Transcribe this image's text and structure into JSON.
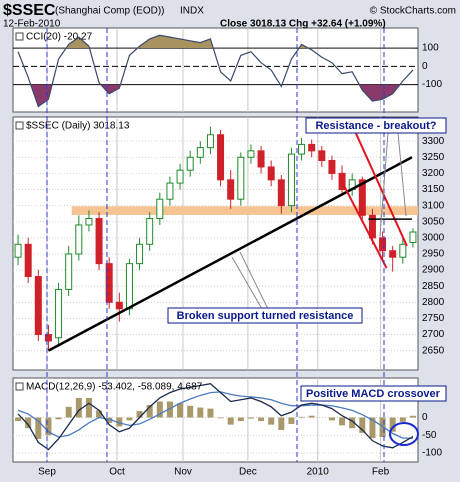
{
  "header": {
    "symbol": "$SSEC",
    "name": "(Shanghai Comp (EOD))",
    "exchange": "INDX",
    "date": "12-Feb-2010",
    "quote": "Close 3018.13  Chg +32.64 (+1.09%)",
    "copyright": "© StockCharts.com"
  },
  "chart_data": [
    {
      "type": "line",
      "title": "CCI(20) -20.27",
      "color": "#3a4a6a",
      "fill_colors": [
        "#a8925f",
        "#8a3a6a"
      ],
      "values": [
        80,
        -60,
        -220,
        -180,
        40,
        120,
        160,
        110,
        -90,
        -150,
        -120,
        60,
        110,
        150,
        170,
        160,
        150,
        140,
        130,
        150,
        -30,
        -80,
        60,
        80,
        20,
        -20,
        -110,
        40,
        120,
        90,
        50,
        20,
        -40,
        -30,
        -130,
        -190,
        -180,
        -150,
        -80,
        -20.27
      ],
      "ylim": [
        -250,
        210
      ],
      "yticks": [
        100,
        0,
        -100
      ]
    },
    {
      "type": "candlestick",
      "title": "$SSEC (Daily) 3018.13",
      "up_color": "#1f8a2a",
      "down_color": "#d0202a",
      "grid": true,
      "categories": [
        null,
        null,
        null,
        null,
        null,
        null,
        null,
        null,
        null,
        null,
        null,
        null,
        null,
        null,
        null,
        null,
        null,
        null,
        null,
        null,
        null,
        null,
        null,
        null,
        null,
        null,
        null,
        null,
        null,
        null,
        null,
        null,
        null,
        null,
        null,
        null,
        null,
        null,
        null,
        null
      ],
      "open": [
        2940,
        2980,
        2880,
        2700,
        2690,
        2840,
        2950,
        3040,
        3060,
        2920,
        2800,
        2780,
        2920,
        2980,
        3060,
        3120,
        3170,
        3210,
        3250,
        3280,
        3320,
        3180,
        3120,
        3250,
        3270,
        3220,
        3180,
        3100,
        3260,
        3290,
        3270,
        3240,
        3200,
        3150,
        3180,
        3070,
        3000,
        2960,
        2940,
        2985.49
      ],
      "high": [
        3010,
        3000,
        2900,
        2730,
        2860,
        2975,
        3070,
        3085,
        3080,
        2940,
        2830,
        2935,
        3000,
        3080,
        3140,
        3190,
        3230,
        3270,
        3300,
        3345,
        3335,
        3210,
        3265,
        3290,
        3285,
        3240,
        3195,
        3280,
        3310,
        3305,
        3285,
        3255,
        3225,
        3200,
        3190,
        3090,
        3020,
        2975,
        3000,
        3030
      ],
      "low": [
        2915,
        2860,
        2680,
        2650,
        2670,
        2820,
        2930,
        3020,
        2900,
        2780,
        2740,
        2760,
        2900,
        2960,
        3040,
        3100,
        3150,
        3190,
        3230,
        3260,
        3160,
        3090,
        3100,
        3230,
        3200,
        3160,
        3075,
        3080,
        3240,
        3250,
        3220,
        3180,
        3130,
        3130,
        3050,
        2980,
        2930,
        2895,
        2920,
        2970
      ],
      "close": [
        2980,
        2880,
        2700,
        2680,
        2840,
        2950,
        3040,
        3060,
        2920,
        2800,
        2780,
        2920,
        2980,
        3060,
        3120,
        3170,
        3210,
        3250,
        3280,
        3320,
        3180,
        3120,
        3250,
        3270,
        3220,
        3180,
        3100,
        3260,
        3290,
        3270,
        3240,
        3200,
        3150,
        3180,
        3070,
        3000,
        2960,
        2940,
        2980,
        3018.13
      ],
      "ylim": [
        2590,
        3375
      ],
      "yticks": [
        2650,
        2700,
        2750,
        2800,
        2850,
        2900,
        2950,
        3000,
        3050,
        3100,
        3150,
        3200,
        3250,
        3300
      ],
      "band": {
        "from": 3071,
        "to": 3098,
        "start": 5.3,
        "color": "#f5c492"
      },
      "lines": [
        {
          "x": [
            3,
            38.9
          ],
          "y": [
            2650,
            3250
          ],
          "color": "#000000",
          "width": 2.5
        },
        {
          "x": [
            33,
            38.4
          ],
          "y": [
            3350,
            2975
          ],
          "color": "#e0141e",
          "width": 2
        },
        {
          "x": [
            31.8,
            36.4
          ],
          "y": [
            3186,
            2906
          ],
          "color": "#e0141e",
          "width": 2
        },
        {
          "x": [
            34.6,
            38.9
          ],
          "y": [
            3058,
            3058
          ],
          "color": "#000000",
          "width": 1.5
        }
      ],
      "annotations": [
        "Resistance - breakout?",
        "Broken support turned resistance"
      ]
    },
    {
      "type": "macd",
      "title": "MACD(12,26,9) -53.402, -58.089, 4.687",
      "macd_color": "#1a2a4a",
      "signal_color": "#4a7ac0",
      "hist_color": "#a8986a",
      "macd": [
        10,
        -20,
        -70,
        -90,
        -60,
        -20,
        20,
        40,
        20,
        -20,
        -40,
        -30,
        0,
        30,
        55,
        70,
        80,
        85,
        90,
        95,
        70,
        45,
        50,
        55,
        45,
        30,
        5,
        15,
        35,
        40,
        35,
        25,
        5,
        -10,
        -35,
        -65,
        -80,
        -85,
        -70,
        -53.402
      ],
      "signal": [
        20,
        10,
        -10,
        -40,
        -55,
        -50,
        -35,
        -15,
        0,
        -5,
        -15,
        -22,
        -18,
        -5,
        10,
        25,
        40,
        52,
        62,
        70,
        72,
        65,
        60,
        58,
        55,
        50,
        40,
        33,
        33,
        35,
        35,
        33,
        27,
        20,
        8,
        -7,
        -25,
        -45,
        -58,
        -58.089
      ],
      "histogram": [
        -10,
        -30,
        -60,
        -50,
        -5,
        30,
        55,
        55,
        20,
        -15,
        -25,
        -8,
        18,
        35,
        45,
        45,
        40,
        33,
        28,
        25,
        -2,
        -20,
        -10,
        -3,
        -10,
        -20,
        -35,
        -18,
        2,
        5,
        0,
        -8,
        -22,
        -30,
        -43,
        -58,
        -55,
        -40,
        -12,
        4.687
      ],
      "ylim": [
        -125,
        111
      ],
      "yticks": [
        0,
        -50,
        -100
      ],
      "xticks": [
        {
          "value": 2.86,
          "label": "Sep"
        },
        {
          "value": 9.77,
          "label": "Oct"
        },
        {
          "value": 16.29,
          "label": "Nov"
        },
        {
          "value": 22.7,
          "label": "Dec"
        },
        {
          "value": 29.6,
          "label": "2010"
        },
        {
          "value": 35.8,
          "label": "Feb"
        }
      ],
      "annotations": [
        "Positive MACD crossover"
      ]
    }
  ]
}
